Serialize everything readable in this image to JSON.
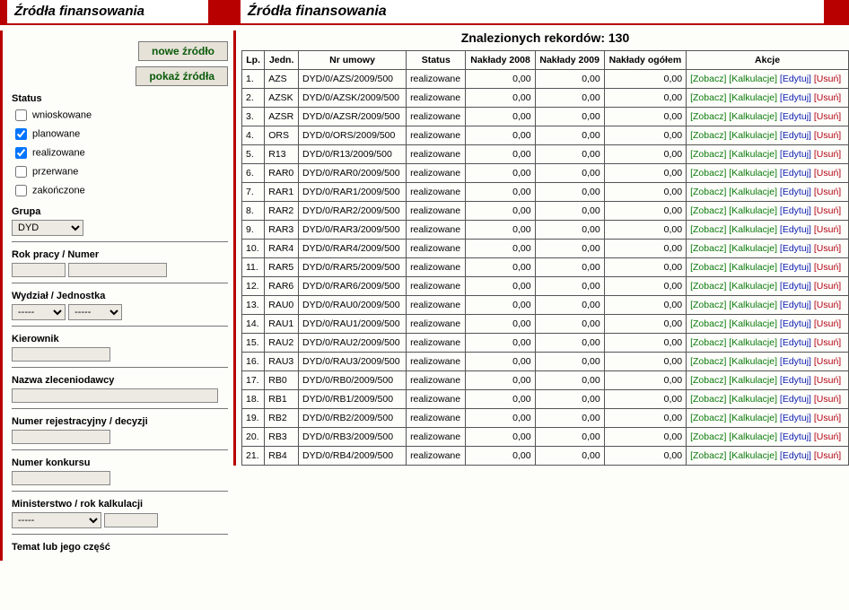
{
  "sidebar": {
    "title": "Źródła finansowania",
    "buttons": {
      "new": "nowe źródło",
      "show": "pokaż źródła"
    },
    "status": {
      "label": "Status",
      "items": [
        {
          "label": "wnioskowane",
          "checked": false
        },
        {
          "label": "planowane",
          "checked": true
        },
        {
          "label": "realizowane",
          "checked": true
        },
        {
          "label": "przerwane",
          "checked": false
        },
        {
          "label": "zakończone",
          "checked": false
        }
      ]
    },
    "grupa": {
      "label": "Grupa",
      "value": "DYD"
    },
    "rok_numer": {
      "label": "Rok pracy / Numer",
      "rok": "",
      "numer": ""
    },
    "wydzial": {
      "label": "Wydział / Jednostka",
      "val1": "-----",
      "val2": "-----"
    },
    "kierownik": {
      "label": "Kierownik",
      "value": ""
    },
    "zleceniodawca": {
      "label": "Nazwa zleceniodawcy",
      "value": ""
    },
    "nr_rej": {
      "label": "Numer rejestracyjny / decyzji",
      "value": ""
    },
    "nr_konkursu": {
      "label": "Numer konkursu",
      "value": ""
    },
    "ministerstwo": {
      "label": "Ministerstwo / rok kalkulacji",
      "val1": "-----",
      "val2": ""
    },
    "temat": {
      "label": "Temat lub jego część"
    }
  },
  "main": {
    "title": "Źródła finansowania",
    "found_label": "Znalezionych rekordów: 130",
    "headers": {
      "lp": "Lp.",
      "jedn": "Jedn.",
      "nr_umowy": "Nr umowy",
      "status": "Status",
      "nak2008": "Nakłady 2008",
      "nak2009": "Nakłady 2009",
      "nak_ogolem": "Nakłady ogółem",
      "akcje": "Akcje"
    },
    "action_labels": {
      "zobacz": "[Zobacz]",
      "kalk": "[Kalkulacje]",
      "edytuj": "[Edytuj]",
      "usun": "[Usuń]"
    },
    "rows": [
      {
        "lp": "1.",
        "jedn": "AZS",
        "nr": "DYD/0/AZS/2009/500",
        "status": "realizowane",
        "n08": "0,00",
        "n09": "0,00",
        "nog": "0,00"
      },
      {
        "lp": "2.",
        "jedn": "AZSK",
        "nr": "DYD/0/AZSK/2009/500",
        "status": "realizowane",
        "n08": "0,00",
        "n09": "0,00",
        "nog": "0,00"
      },
      {
        "lp": "3.",
        "jedn": "AZSR",
        "nr": "DYD/0/AZSR/2009/500",
        "status": "realizowane",
        "n08": "0,00",
        "n09": "0,00",
        "nog": "0,00"
      },
      {
        "lp": "4.",
        "jedn": "ORS",
        "nr": "DYD/0/ORS/2009/500",
        "status": "realizowane",
        "n08": "0,00",
        "n09": "0,00",
        "nog": "0,00"
      },
      {
        "lp": "5.",
        "jedn": "R13",
        "nr": "DYD/0/R13/2009/500",
        "status": "realizowane",
        "n08": "0,00",
        "n09": "0,00",
        "nog": "0,00"
      },
      {
        "lp": "6.",
        "jedn": "RAR0",
        "nr": "DYD/0/RAR0/2009/500",
        "status": "realizowane",
        "n08": "0,00",
        "n09": "0,00",
        "nog": "0,00"
      },
      {
        "lp": "7.",
        "jedn": "RAR1",
        "nr": "DYD/0/RAR1/2009/500",
        "status": "realizowane",
        "n08": "0,00",
        "n09": "0,00",
        "nog": "0,00"
      },
      {
        "lp": "8.",
        "jedn": "RAR2",
        "nr": "DYD/0/RAR2/2009/500",
        "status": "realizowane",
        "n08": "0,00",
        "n09": "0,00",
        "nog": "0,00"
      },
      {
        "lp": "9.",
        "jedn": "RAR3",
        "nr": "DYD/0/RAR3/2009/500",
        "status": "realizowane",
        "n08": "0,00",
        "n09": "0,00",
        "nog": "0,00"
      },
      {
        "lp": "10.",
        "jedn": "RAR4",
        "nr": "DYD/0/RAR4/2009/500",
        "status": "realizowane",
        "n08": "0,00",
        "n09": "0,00",
        "nog": "0,00"
      },
      {
        "lp": "11.",
        "jedn": "RAR5",
        "nr": "DYD/0/RAR5/2009/500",
        "status": "realizowane",
        "n08": "0,00",
        "n09": "0,00",
        "nog": "0,00"
      },
      {
        "lp": "12.",
        "jedn": "RAR6",
        "nr": "DYD/0/RAR6/2009/500",
        "status": "realizowane",
        "n08": "0,00",
        "n09": "0,00",
        "nog": "0,00"
      },
      {
        "lp": "13.",
        "jedn": "RAU0",
        "nr": "DYD/0/RAU0/2009/500",
        "status": "realizowane",
        "n08": "0,00",
        "n09": "0,00",
        "nog": "0,00"
      },
      {
        "lp": "14.",
        "jedn": "RAU1",
        "nr": "DYD/0/RAU1/2009/500",
        "status": "realizowane",
        "n08": "0,00",
        "n09": "0,00",
        "nog": "0,00"
      },
      {
        "lp": "15.",
        "jedn": "RAU2",
        "nr": "DYD/0/RAU2/2009/500",
        "status": "realizowane",
        "n08": "0,00",
        "n09": "0,00",
        "nog": "0,00"
      },
      {
        "lp": "16.",
        "jedn": "RAU3",
        "nr": "DYD/0/RAU3/2009/500",
        "status": "realizowane",
        "n08": "0,00",
        "n09": "0,00",
        "nog": "0,00"
      },
      {
        "lp": "17.",
        "jedn": "RB0",
        "nr": "DYD/0/RB0/2009/500",
        "status": "realizowane",
        "n08": "0,00",
        "n09": "0,00",
        "nog": "0,00"
      },
      {
        "lp": "18.",
        "jedn": "RB1",
        "nr": "DYD/0/RB1/2009/500",
        "status": "realizowane",
        "n08": "0,00",
        "n09": "0,00",
        "nog": "0,00"
      },
      {
        "lp": "19.",
        "jedn": "RB2",
        "nr": "DYD/0/RB2/2009/500",
        "status": "realizowane",
        "n08": "0,00",
        "n09": "0,00",
        "nog": "0,00"
      },
      {
        "lp": "20.",
        "jedn": "RB3",
        "nr": "DYD/0/RB3/2009/500",
        "status": "realizowane",
        "n08": "0,00",
        "n09": "0,00",
        "nog": "0,00"
      },
      {
        "lp": "21.",
        "jedn": "RB4",
        "nr": "DYD/0/RB4/2009/500",
        "status": "realizowane",
        "n08": "0,00",
        "n09": "0,00",
        "nog": "0,00"
      }
    ]
  },
  "colors": {
    "accent": "#b80000",
    "button_bg": "#e6e2d8",
    "button_text": "#0a5a0a",
    "link_green": "#0a7a0a",
    "link_blue": "#1020b0",
    "link_red": "#b00010"
  }
}
